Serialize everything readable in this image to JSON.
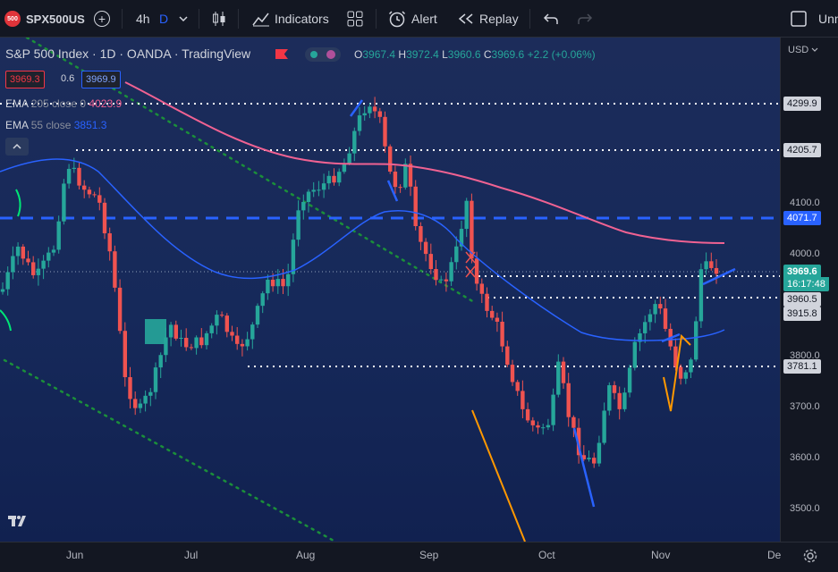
{
  "toolbar": {
    "symbol_badge": "500",
    "symbol": "SPX500US",
    "interval": "4h",
    "interval_mode": "D",
    "indicators": "Indicators",
    "alert": "Alert",
    "replay": "Replay",
    "right_label": "Unn"
  },
  "legend": {
    "title": "S&P 500 Index · 1D · OANDA · TradingView",
    "open_label": "O",
    "open": "3967.4",
    "high_label": "H",
    "high": "3972.4",
    "low_label": "L",
    "low": "3960.6",
    "close_label": "C",
    "close": "3969.6",
    "change": "+2.2 (+0.06%)",
    "sell": "3969.3",
    "spread": "0.6",
    "buy": "3969.9",
    "ema1_label": "EMA",
    "ema1_params": "205 close 0",
    "ema1_value": "4023.9",
    "ema2_label": "EMA",
    "ema2_params": "55 close",
    "ema2_value": "3851.3"
  },
  "price_axis": {
    "currency": "USD",
    "ticks": [
      "4100.0",
      "4000.0",
      "3800.0",
      "3700.0",
      "3600.0",
      "3500.0"
    ],
    "labels": [
      "4299.9",
      "4205.7",
      "4071.7",
      "3969.6",
      "16:17:48",
      "3960.5",
      "3915.8",
      "3781.1"
    ]
  },
  "time_axis": {
    "ticks": [
      "Jun",
      "Jul",
      "Aug",
      "Sep",
      "Oct",
      "Nov",
      "De"
    ]
  },
  "colors": {
    "up": "#26a69a",
    "down": "#ef5350",
    "ema_long": "#f06292",
    "ema_short": "#2962ff",
    "level_line": "#ffffff",
    "dashed": "#2962ff",
    "trend_green": "#1b8f3a",
    "orange": "#ff9800"
  },
  "icons": [
    "candles-icon",
    "indicators-icon",
    "layouts-icon",
    "alert-icon",
    "replay-icon",
    "undo-icon",
    "redo-icon",
    "fullscreen-icon",
    "settings-icon",
    "tradingview-logo"
  ]
}
